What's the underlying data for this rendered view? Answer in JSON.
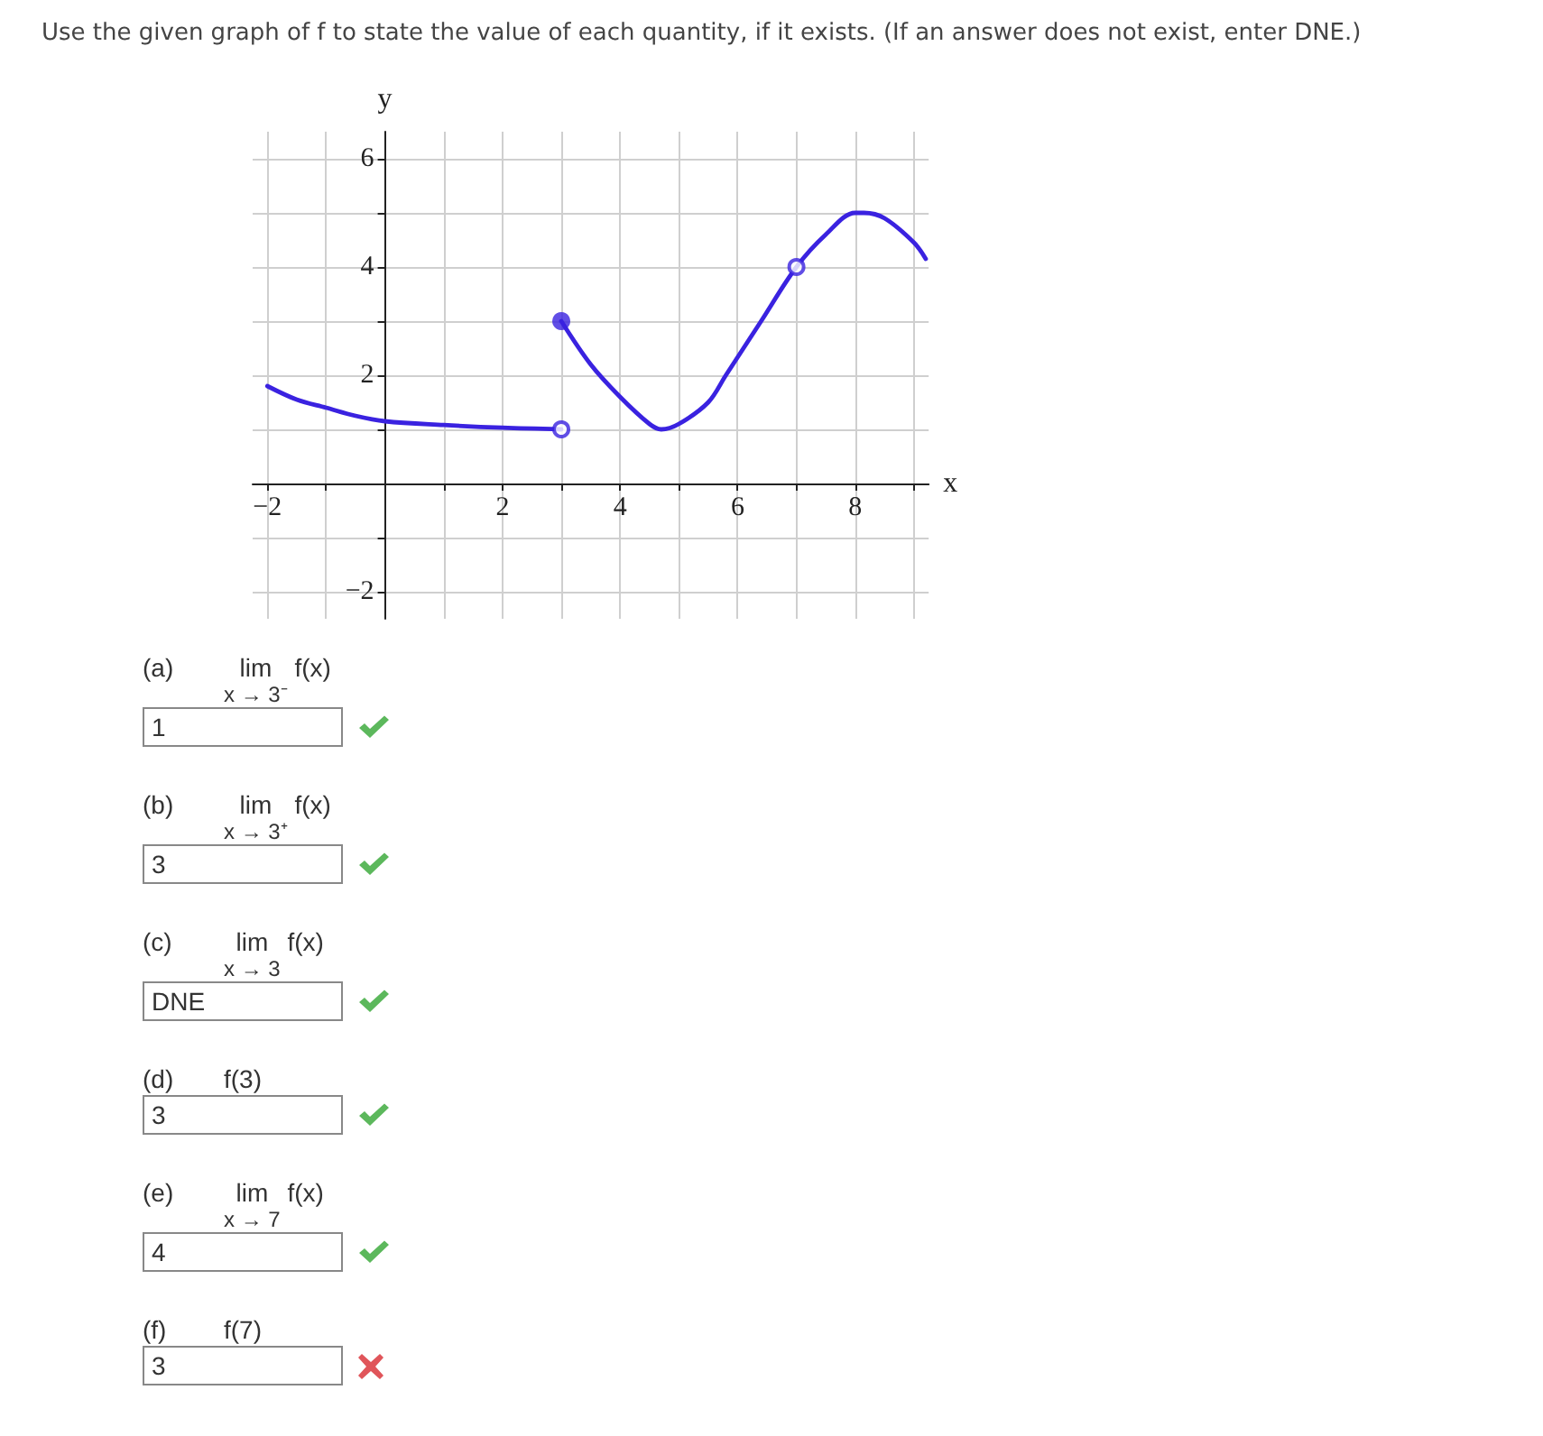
{
  "chart_data": {
    "type": "line",
    "title": "Use the given graph of f to state the value of each quantity, if it exists. (If an answer does not exist, enter DNE.)",
    "xlabel": "x",
    "ylabel": "y",
    "xlim": [
      -2.25,
      9.25
    ],
    "ylim": [
      -2.5,
      6.5
    ],
    "xticks": [
      {
        "value": -2,
        "label": "−2"
      },
      {
        "value": -1,
        "label": null
      },
      {
        "value": 0,
        "label": null
      },
      {
        "value": 1,
        "label": null
      },
      2,
      {
        "value": 3,
        "label": null
      },
      4,
      {
        "value": 5,
        "label": null
      },
      6,
      {
        "value": 7,
        "label": null
      },
      8,
      {
        "value": 9,
        "label": null
      }
    ],
    "yticks": [
      {
        "value": -2,
        "label": "−2"
      },
      {
        "value": -1,
        "label": null
      },
      {
        "value": 0,
        "label": null
      },
      {
        "value": 1,
        "label": null
      },
      2,
      {
        "value": 3,
        "label": null
      },
      4,
      {
        "value": 5,
        "label": null
      },
      6
    ],
    "grid": true,
    "line_style": "solid",
    "series": [
      {
        "type": "line",
        "color": "#3a22e0",
        "marker": "none",
        "x": [
          -2,
          -1.5,
          -1,
          -0.5,
          0,
          1,
          2,
          3
        ],
        "values": [
          1.8,
          1.55,
          1.4,
          1.25,
          1.15,
          1.08,
          1.03,
          1.0
        ]
      },
      {
        "type": "line",
        "color": "#3a22e0",
        "marker": "none",
        "x": [
          3,
          3.5,
          4,
          4.5,
          4.7,
          5,
          5.5,
          5.8,
          6.4,
          7,
          7.5,
          8,
          8.15,
          8.5,
          9,
          9.2
        ],
        "values": [
          3,
          2.2,
          1.6,
          1.1,
          1.0,
          1.1,
          1.5,
          2,
          3,
          4,
          4.6,
          5,
          5,
          4.9,
          4.45,
          4.15
        ]
      },
      {
        "type": "scatter",
        "color": "#3a22e0",
        "marker": "circle",
        "x": [
          3
        ],
        "values": [
          3
        ]
      },
      {
        "type": "scatter",
        "color": "#3a22e0",
        "marker": "open circle",
        "x": [
          3,
          7
        ],
        "values": [
          1,
          4
        ]
      }
    ],
    "annotations": [
      "(a)",
      "lim$_{x → 3⁻}$ f(x)",
      "1",
      "(b)",
      "lim$_{x → 3⁺}$ f(x)",
      "3",
      "(c)",
      "lim$_{x → 3}$ f(x)",
      "DNE",
      "(d)",
      "f(3)",
      "3",
      "(e)",
      "lim$_{x → 7}$ f(x)",
      "4",
      "(f)",
      "f(7)",
      "3"
    ]
  }
}
